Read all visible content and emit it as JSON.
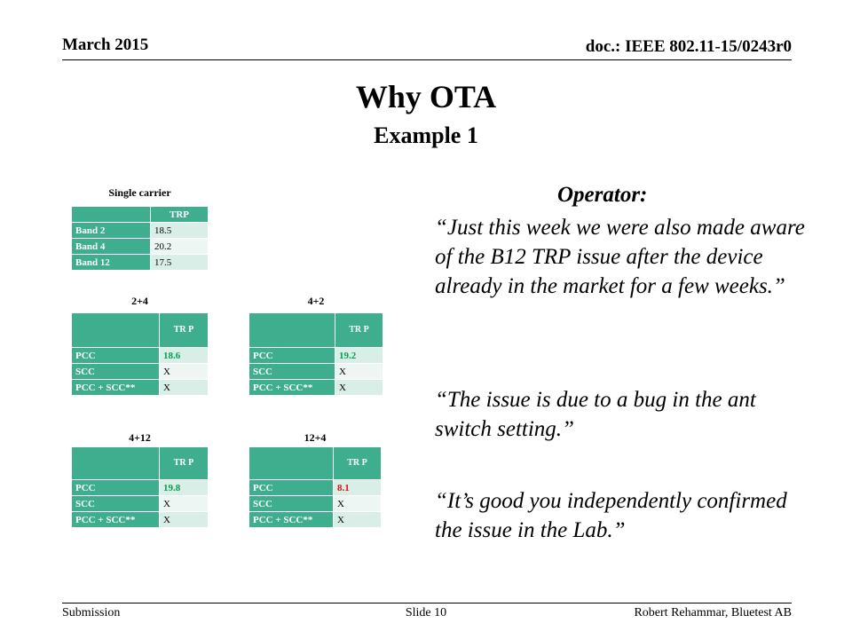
{
  "header": {
    "date": "March 2015",
    "doc": "doc.: IEEE 802.11-15/0243r0"
  },
  "title": "Why OTA",
  "subtitle": "Example 1",
  "single": {
    "caption": "Single carrier",
    "col": "TRP",
    "rows": [
      {
        "label": "Band 2",
        "value": "18.5"
      },
      {
        "label": "Band 4",
        "value": "20.2"
      },
      {
        "label": "Band 12",
        "value": "17.5"
      }
    ]
  },
  "ca_tables": [
    {
      "caption": "2+4",
      "col": "TR P",
      "rows": [
        {
          "label": "PCC",
          "value": "18.6"
        },
        {
          "label": "SCC",
          "value": "X"
        },
        {
          "label": "PCC + SCC**",
          "value": "X"
        }
      ]
    },
    {
      "caption": "4+2",
      "col": "TR P",
      "rows": [
        {
          "label": "PCC",
          "value": "19.2"
        },
        {
          "label": "SCC",
          "value": "X"
        },
        {
          "label": "PCC + SCC**",
          "value": "X"
        }
      ]
    },
    {
      "caption": "4+12",
      "col": "TR P",
      "rows": [
        {
          "label": "PCC",
          "value": "19.8"
        },
        {
          "label": "SCC",
          "value": "X"
        },
        {
          "label": "PCC + SCC**",
          "value": "X"
        }
      ]
    },
    {
      "caption": "12+4",
      "col": "TR P",
      "rows": [
        {
          "label": "PCC",
          "value": "8.1"
        },
        {
          "label": "SCC",
          "value": "X"
        },
        {
          "label": "PCC + SCC**",
          "value": "X"
        }
      ]
    }
  ],
  "colors": {
    "table_header": "#3fae8e",
    "good": "#00a050",
    "bad": "#e01010"
  },
  "operator": {
    "heading": "Operator:",
    "quote1": "“Just this week we were also made aware of the B12 TRP issue after the device already in the market for a few weeks.”",
    "quote2": "“The issue is due to a bug in the ant switch setting.”",
    "quote3": "“It’s good you independently confirmed the issue in the Lab.”"
  },
  "footer": {
    "left": "Submission",
    "center": "Slide 10",
    "right": "Robert Rehammar, Bluetest AB"
  }
}
